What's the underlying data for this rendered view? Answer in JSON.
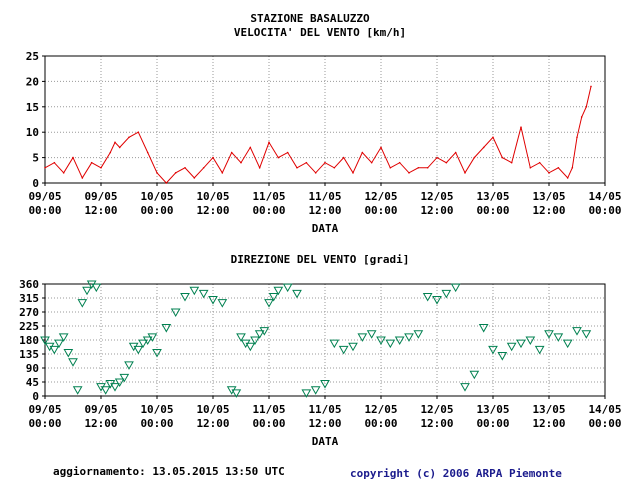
{
  "header": {
    "station": "STAZIONE BASALUZZO",
    "speed_title": "VELOCITA' DEL VENTO [km/h]",
    "dir_title": "DIREZIONE DEL VENTO [gradi]"
  },
  "footer": {
    "updated": "aggiornamento: 13.05.2015 13:50 UTC",
    "copyright": "copyright (c) 2006 ARPA Piemonte"
  },
  "colors": {
    "speed": "#e00000",
    "direction": "#008050",
    "grid": "#999999"
  },
  "x_ticks": [
    {
      "date": "09/05",
      "time": "00:00"
    },
    {
      "date": "09/05",
      "time": "12:00"
    },
    {
      "date": "10/05",
      "time": "00:00"
    },
    {
      "date": "10/05",
      "time": "12:00"
    },
    {
      "date": "11/05",
      "time": "00:00"
    },
    {
      "date": "11/05",
      "time": "12:00"
    },
    {
      "date": "12/05",
      "time": "00:00"
    },
    {
      "date": "12/05",
      "time": "12:00"
    },
    {
      "date": "13/05",
      "time": "00:00"
    },
    {
      "date": "13/05",
      "time": "12:00"
    },
    {
      "date": "14/05",
      "time": "00:00"
    }
  ],
  "chart_data": [
    {
      "type": "line",
      "title": "VELOCITA' DEL VENTO [km/h]",
      "xlabel": "DATA",
      "ylabel": "",
      "x_unit": "hours since 09/05 00:00 UTC",
      "xlim": [
        0,
        120
      ],
      "ylim": [
        0,
        25
      ],
      "yticks": [
        0,
        5,
        10,
        15,
        20,
        25
      ],
      "grid": true,
      "series": [
        {
          "x": [
            0,
            2,
            4,
            6,
            8,
            10,
            12,
            14,
            15,
            16,
            18,
            20,
            22,
            24,
            26,
            28,
            30,
            32,
            34,
            36,
            38,
            40,
            42,
            44,
            46,
            48,
            50,
            52,
            54,
            56,
            58,
            60,
            62,
            64,
            66,
            68,
            70,
            72,
            74,
            76,
            78,
            80,
            82,
            84,
            86,
            88,
            90,
            92,
            94,
            96,
            98,
            100,
            102,
            104,
            106,
            108,
            110,
            112,
            113,
            114,
            115,
            116,
            117
          ],
          "values": [
            3,
            4,
            2,
            5,
            1,
            4,
            3,
            6,
            8,
            7,
            9,
            10,
            6,
            2,
            0,
            2,
            3,
            1,
            3,
            5,
            2,
            6,
            4,
            7,
            3,
            8,
            5,
            6,
            3,
            4,
            2,
            4,
            3,
            5,
            2,
            6,
            4,
            7,
            3,
            4,
            2,
            3,
            3,
            5,
            4,
            6,
            2,
            5,
            7,
            9,
            5,
            4,
            11,
            3,
            4,
            2,
            3,
            1,
            3,
            9,
            13,
            15,
            19
          ]
        }
      ]
    },
    {
      "type": "scatter",
      "title": "DIREZIONE DEL VENTO [gradi]",
      "xlabel": "DATA",
      "ylabel": "",
      "x_unit": "hours since 09/05 00:00 UTC",
      "xlim": [
        0,
        120
      ],
      "ylim": [
        0,
        360
      ],
      "yticks": [
        0,
        45,
        90,
        135,
        180,
        225,
        270,
        315,
        360
      ],
      "grid": true,
      "marker": "triangle-down",
      "series": [
        {
          "x": [
            0,
            1,
            2,
            3,
            4,
            5,
            6,
            7,
            8,
            9,
            10,
            11,
            12,
            13,
            14,
            15,
            16,
            17,
            18,
            19,
            20,
            21,
            22,
            23,
            24,
            26,
            28,
            30,
            32,
            34,
            36,
            38,
            40,
            41,
            42,
            43,
            44,
            45,
            46,
            47,
            48,
            49,
            50,
            52,
            54,
            56,
            58,
            60,
            62,
            64,
            66,
            68,
            70,
            72,
            74,
            76,
            78,
            80,
            82,
            84,
            86,
            88,
            90,
            92,
            94,
            96,
            98,
            100,
            102,
            104,
            106,
            108,
            110,
            112,
            114,
            116
          ],
          "values": [
            180,
            160,
            150,
            170,
            190,
            140,
            110,
            20,
            300,
            340,
            360,
            350,
            30,
            20,
            40,
            30,
            45,
            60,
            100,
            160,
            150,
            170,
            180,
            190,
            140,
            220,
            270,
            320,
            340,
            330,
            310,
            300,
            20,
            10,
            190,
            170,
            160,
            180,
            200,
            210,
            300,
            320,
            340,
            350,
            330,
            10,
            20,
            40,
            170,
            150,
            160,
            190,
            200,
            180,
            170,
            180,
            190,
            200,
            320,
            310,
            330,
            350,
            30,
            70,
            220,
            150,
            130,
            160,
            170,
            180,
            150,
            200,
            190,
            170,
            210,
            200
          ]
        }
      ]
    }
  ]
}
